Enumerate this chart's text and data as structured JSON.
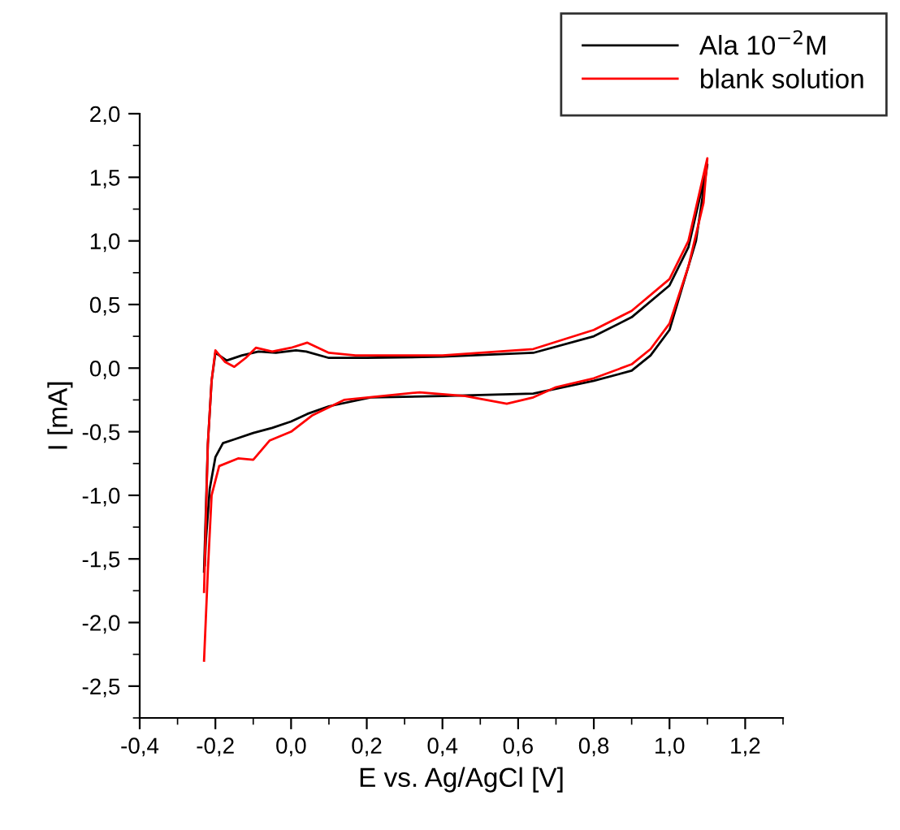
{
  "chart_data": {
    "type": "line",
    "xlabel": "E vs. Ag/AgCl [V]",
    "ylabel": "I [mA]",
    "xlim": [
      -0.4,
      1.3
    ],
    "ylim": [
      -2.75,
      2.0
    ],
    "xticks": [
      {
        "value": -0.4,
        "label": "-0,4"
      },
      {
        "value": -0.2,
        "label": "-0,2"
      },
      {
        "value": 0.0,
        "label": "0,0"
      },
      {
        "value": 0.2,
        "label": "0,2"
      },
      {
        "value": 0.4,
        "label": "0,4"
      },
      {
        "value": 0.6,
        "label": "0,6"
      },
      {
        "value": 0.8,
        "label": "0,8"
      },
      {
        "value": 1.0,
        "label": "1,0"
      },
      {
        "value": 1.2,
        "label": "1,2"
      }
    ],
    "yticks": [
      {
        "value": -2.5,
        "label": "-2,5"
      },
      {
        "value": -2.0,
        "label": "-2,0"
      },
      {
        "value": -1.5,
        "label": "-1,5"
      },
      {
        "value": -1.0,
        "label": "-1,0"
      },
      {
        "value": -0.5,
        "label": "-0,5"
      },
      {
        "value": 0.0,
        "label": "0,0"
      },
      {
        "value": 0.5,
        "label": "0,5"
      },
      {
        "value": 1.0,
        "label": "1,0"
      },
      {
        "value": 1.5,
        "label": "1,5"
      },
      {
        "value": 2.0,
        "label": "2,0"
      }
    ],
    "legend": "top right",
    "grid": false,
    "marker": "none",
    "line_style": "solid",
    "series": [
      {
        "name": "Ala 10$^{−2}$M",
        "color": "#000000",
        "x": [
          -0.23,
          -0.22,
          -0.21,
          -0.2,
          -0.17,
          -0.13,
          -0.086,
          -0.04,
          0.013,
          0.04,
          0.1,
          0.2,
          0.4,
          0.64,
          0.8,
          0.9,
          1.0,
          1.05,
          1.1,
          1.07,
          1.03,
          1.0,
          0.95,
          0.9,
          0.8,
          0.64,
          0.4,
          0.21,
          0.1,
          0.043,
          0.0,
          -0.05,
          -0.1,
          -0.15,
          -0.18,
          -0.2,
          -0.215,
          -0.225,
          -0.228
        ],
        "values": [
          -1.6,
          -0.6,
          -0.1,
          0.12,
          0.06,
          0.1,
          0.13,
          0.12,
          0.14,
          0.13,
          0.08,
          0.08,
          0.09,
          0.12,
          0.25,
          0.4,
          0.65,
          0.95,
          1.6,
          1.0,
          0.6,
          0.3,
          0.1,
          -0.02,
          -0.1,
          -0.2,
          -0.22,
          -0.23,
          -0.3,
          -0.36,
          -0.42,
          -0.47,
          -0.51,
          -0.56,
          -0.59,
          -0.7,
          -0.95,
          -1.35,
          -1.55
        ]
      },
      {
        "name": "blank solution",
        "color": "#ff0000",
        "x": [
          -0.23,
          -0.22,
          -0.21,
          -0.2,
          -0.175,
          -0.15,
          -0.12,
          -0.093,
          -0.05,
          0.0,
          0.043,
          0.1,
          0.17,
          0.4,
          0.64,
          0.8,
          0.9,
          1.0,
          1.05,
          1.1,
          1.09,
          1.05,
          1.0,
          0.95,
          0.9,
          0.8,
          0.7,
          0.64,
          0.57,
          0.46,
          0.34,
          0.14,
          0.057,
          0.0,
          -0.057,
          -0.1,
          -0.14,
          -0.19,
          -0.21,
          -0.22,
          -0.23
        ],
        "values": [
          -1.76,
          -0.6,
          -0.1,
          0.14,
          0.05,
          0.01,
          0.08,
          0.16,
          0.13,
          0.16,
          0.2,
          0.12,
          0.1,
          0.1,
          0.15,
          0.3,
          0.45,
          0.7,
          1.0,
          1.65,
          1.3,
          0.8,
          0.35,
          0.15,
          0.03,
          -0.08,
          -0.15,
          -0.23,
          -0.28,
          -0.22,
          -0.19,
          -0.25,
          -0.37,
          -0.5,
          -0.57,
          -0.72,
          -0.71,
          -0.77,
          -1.0,
          -1.6,
          -2.3
        ]
      }
    ]
  }
}
